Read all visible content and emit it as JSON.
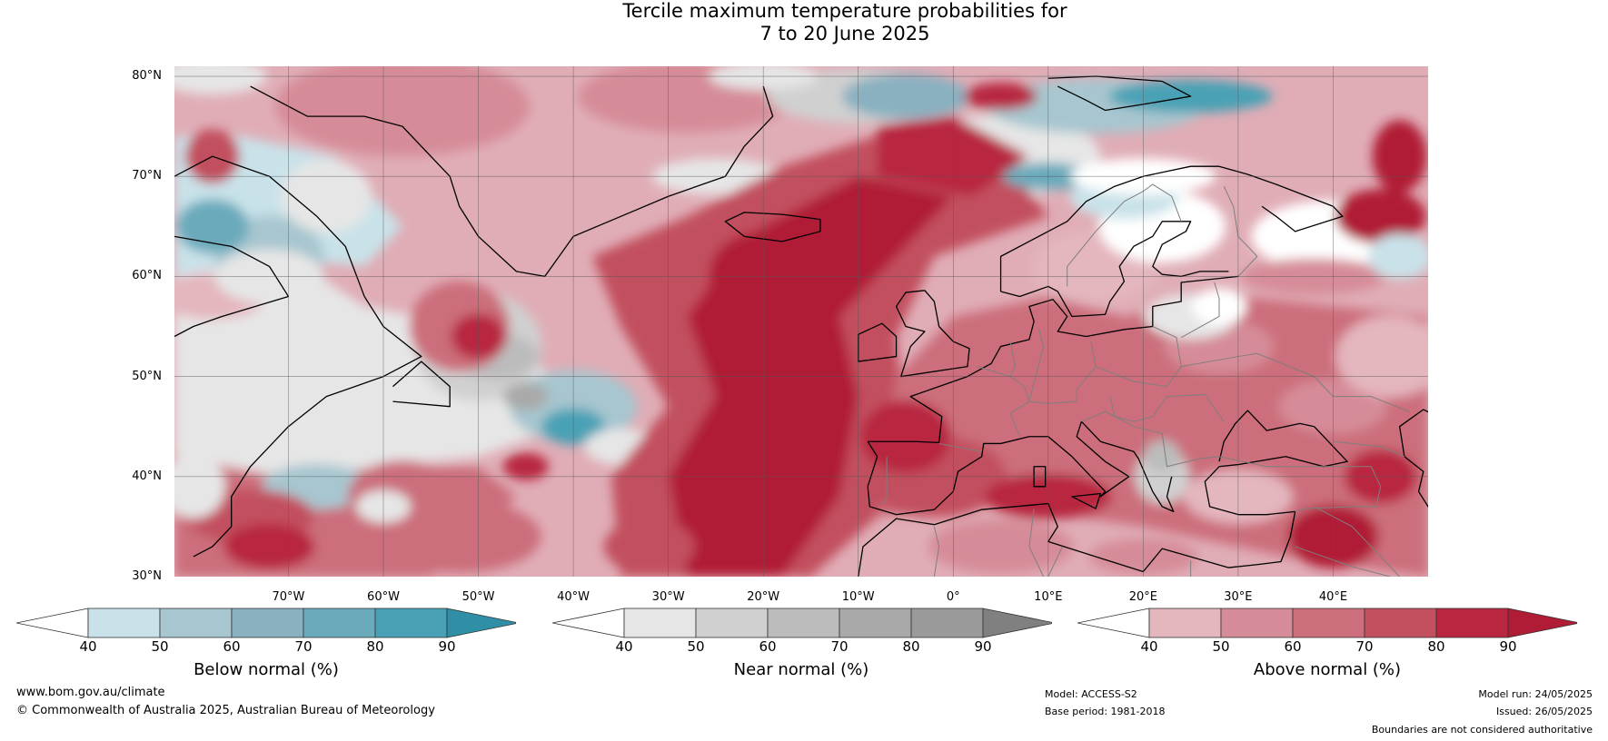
{
  "title": {
    "line1": "Tercile maximum temperature probabilities for",
    "line2": "7 to 20 June 2025"
  },
  "map": {
    "lat_labels": [
      "80°N",
      "70°N",
      "60°N",
      "50°N",
      "40°N",
      "30°N"
    ],
    "lon_labels": [
      "70°W",
      "60°W",
      "50°W",
      "40°W",
      "30°W",
      "20°W",
      "10°W",
      "0°",
      "10°E",
      "20°E",
      "30°E",
      "40°E"
    ],
    "colors": {
      "above": [
        "#e4b6be",
        "#d68c98",
        "#cc6e7c",
        "#c2505f",
        "#b8273f",
        "#b01c36"
      ],
      "near": [
        "#e6e6e6",
        "#d0d0d0",
        "#bcbcbc",
        "#a9a9a9",
        "#8a8a8a"
      ],
      "below": [
        "#c9e2e9",
        "#a7c6cf",
        "#89b1c0",
        "#6aaabb",
        "#4aa1b5",
        "#2e8fa7"
      ],
      "coast": "#000000",
      "border": "#7f7f7f",
      "grid": "#555555"
    }
  },
  "colorbars": [
    {
      "id": "below",
      "label": "Below normal (%)",
      "ticks": [
        "40",
        "50",
        "60",
        "70",
        "80",
        "90"
      ],
      "colors": [
        "#ffffff",
        "#c9e2e9",
        "#a7c6cf",
        "#89b1c0",
        "#6aaabb",
        "#4aa1b5",
        "#2e8fa7"
      ]
    },
    {
      "id": "near",
      "label": "Near normal (%)",
      "ticks": [
        "40",
        "50",
        "60",
        "70",
        "80",
        "90"
      ],
      "colors": [
        "#ffffff",
        "#e6e6e6",
        "#d0d0d0",
        "#bcbcbc",
        "#a9a9a9",
        "#9a9a9a",
        "#808080"
      ]
    },
    {
      "id": "above",
      "label": "Above normal (%)",
      "ticks": [
        "40",
        "50",
        "60",
        "70",
        "80",
        "90"
      ],
      "colors": [
        "#ffffff",
        "#e4b6be",
        "#d68c98",
        "#cc6e7c",
        "#c2505f",
        "#b8273f",
        "#b01c36"
      ]
    }
  ],
  "footer": {
    "website": "www.bom.gov.au/climate",
    "copyright": "© Commonwealth of Australia 2025, Australian Bureau of Meteorology",
    "model": "Model: ACCESS-S2",
    "base_period": "Base period: 1981-2018",
    "model_run": "Model run: 24/05/2025",
    "issued": "Issued: 26/05/2025",
    "disclaimer": "Boundaries are not considered authoritative"
  }
}
